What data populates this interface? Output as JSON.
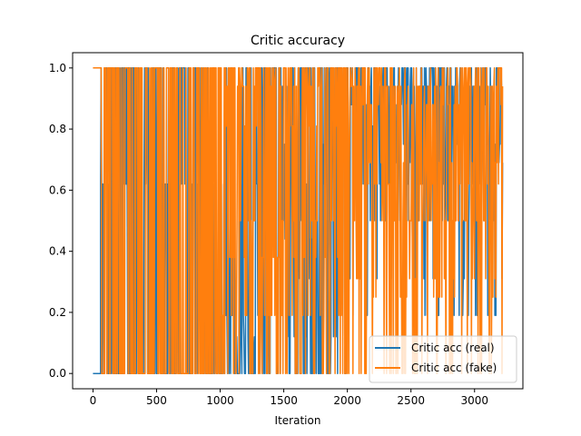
{
  "chart_data": {
    "type": "line",
    "title": "Critic accuracy",
    "xlabel": "Iteration",
    "ylabel": "",
    "xlim": [
      -160,
      3380
    ],
    "ylim": [
      -0.05,
      1.05
    ],
    "xticks": [
      0,
      500,
      1000,
      1500,
      2000,
      2500,
      3000
    ],
    "yticks": [
      0.0,
      0.2,
      0.4,
      0.6,
      0.8,
      1.0
    ],
    "xtick_labels": [
      "0",
      "500",
      "1000",
      "1500",
      "2000",
      "2500",
      "3000"
    ],
    "ytick_labels": [
      "0.0",
      "0.2",
      "0.4",
      "0.6",
      "0.8",
      "1.0"
    ],
    "x_range": [
      0,
      3220
    ],
    "legend": {
      "placement": "lower-right",
      "entries": [
        "Critic acc (real)",
        "Critic acc (fake)"
      ]
    },
    "series": [
      {
        "name": "Critic acc (real)",
        "color": "#1f77b4",
        "segments": [
          {
            "x_from": 0,
            "x_to": 60,
            "values": [
              0.0
            ]
          },
          {
            "x_from": 60,
            "x_to": 900,
            "values": [
              1.0,
              0.0,
              1.0,
              0.0,
              0.62,
              1.0,
              0.0
            ]
          },
          {
            "x_from": 900,
            "x_to": 1300,
            "values": [
              0.0,
              1.0,
              0.19,
              0.0,
              0.12,
              1.0,
              0.0,
              0.62,
              0.19,
              0.0
            ]
          },
          {
            "x_from": 1300,
            "x_to": 2000,
            "values": [
              1.0,
              0.5,
              0.12,
              0.94,
              0.31,
              1.0,
              0.0,
              0.75,
              0.44,
              1.0,
              0.0,
              0.62,
              1.0
            ]
          },
          {
            "x_from": 2000,
            "x_to": 3220,
            "values": [
              0.75,
              1.0,
              0.5,
              0.94,
              0.62,
              1.0,
              0.31,
              0.88,
              0.19,
              0.94,
              0.5,
              0.69,
              1.0,
              0.81,
              0.94,
              1.0
            ]
          }
        ]
      },
      {
        "name": "Critic acc (fake)",
        "color": "#ff7f0e",
        "segments": [
          {
            "x_from": 0,
            "x_to": 60,
            "values": [
              1.0
            ]
          },
          {
            "x_from": 60,
            "x_to": 1000,
            "values": [
              0.0,
              1.0,
              0.0,
              1.0
            ]
          },
          {
            "x_from": 1000,
            "x_to": 2000,
            "values": [
              1.0,
              0.0,
              0.94,
              0.38,
              1.0,
              0.0,
              0.81,
              0.5,
              1.0,
              0.19
            ]
          },
          {
            "x_from": 2000,
            "x_to": 3220,
            "values": [
              0.94,
              0.62,
              1.0,
              0.0,
              0.88,
              0.5,
              1.0,
              0.69,
              0.94,
              0.25,
              0.88,
              0.0,
              0.5,
              0.94,
              0.31,
              1.0
            ]
          }
        ]
      }
    ]
  }
}
